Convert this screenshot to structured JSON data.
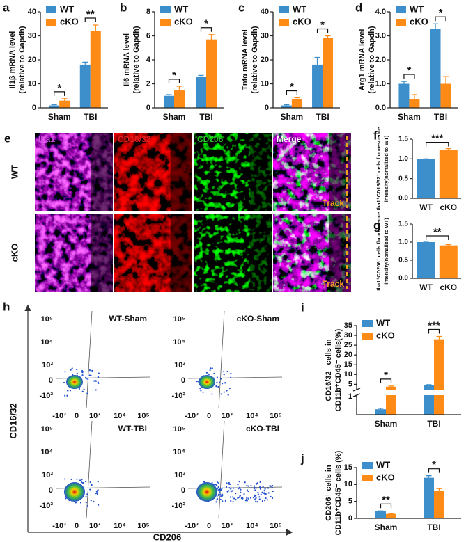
{
  "chart_data": [
    {
      "type": "bar",
      "panel": "a",
      "ylabel": [
        "Il1β mRNA level",
        "(relative to Gapdh)"
      ],
      "categories": [
        "Sham",
        "TBI"
      ],
      "series": [
        {
          "name": "WT",
          "color": "#3d8fcc",
          "values": [
            1,
            18
          ],
          "errors": [
            0.3,
            1
          ]
        },
        {
          "name": "cKO",
          "color": "#ff8b17",
          "values": [
            3,
            32
          ],
          "errors": [
            0.8,
            2.5
          ]
        }
      ],
      "ylim": [
        0,
        40
      ],
      "yticks": [
        0,
        10,
        20,
        30,
        40
      ],
      "significance": [
        "*",
        "**"
      ]
    },
    {
      "type": "bar",
      "panel": "b",
      "ylabel": [
        "Il6 mRNA level",
        "(relative to Gapdh)"
      ],
      "categories": [
        "Sham",
        "TBI"
      ],
      "series": [
        {
          "name": "WT",
          "color": "#3d8fcc",
          "values": [
            1.0,
            2.6
          ],
          "errors": [
            0.1,
            0.1
          ]
        },
        {
          "name": "cKO",
          "color": "#ff8b17",
          "values": [
            1.5,
            5.7
          ],
          "errors": [
            0.3,
            0.4
          ]
        }
      ],
      "ylim": [
        0,
        8
      ],
      "yticks": [
        0,
        2,
        4,
        6,
        8
      ],
      "significance": [
        "*",
        "*"
      ]
    },
    {
      "type": "bar",
      "panel": "c",
      "ylabel": [
        "Tnfα mRNA level",
        "(relative to Gapdh)"
      ],
      "categories": [
        "Sham",
        "TBI"
      ],
      "series": [
        {
          "name": "WT",
          "color": "#3d8fcc",
          "values": [
            1,
            18
          ],
          "errors": [
            0.3,
            3
          ]
        },
        {
          "name": "cKO",
          "color": "#ff8b17",
          "values": [
            3.5,
            29
          ],
          "errors": [
            0.7,
            1
          ]
        }
      ],
      "ylim": [
        0,
        40
      ],
      "yticks": [
        0,
        10,
        20,
        30,
        40
      ],
      "significance": [
        "*",
        "*"
      ]
    },
    {
      "type": "bar",
      "panel": "d",
      "ylabel": [
        "Arg1 mRNA level",
        "(relative to Gapdh)"
      ],
      "categories": [
        "Sham",
        "TBI"
      ],
      "series": [
        {
          "name": "WT",
          "color": "#3d8fcc",
          "values": [
            1.0,
            3.3
          ],
          "errors": [
            0.1,
            0.2
          ]
        },
        {
          "name": "cKO",
          "color": "#ff8b17",
          "values": [
            0.35,
            1.0
          ],
          "errors": [
            0.2,
            0.3
          ]
        }
      ],
      "ylim": [
        0,
        4
      ],
      "yticks": [
        {
          "value": 0,
          "label": "0.0"
        },
        {
          "value": 1,
          "label": "1.0"
        },
        {
          "value": 2,
          "label": "2.0"
        },
        {
          "value": 3,
          "label": "3.0"
        },
        {
          "value": 4,
          "label": "4.0"
        }
      ],
      "significance": [
        "*",
        "*"
      ]
    },
    {
      "type": "bar",
      "panel": "f",
      "ylabel": [
        "Iba1⁺CD16/32⁺ cells fluorescence",
        "intensity(nomalized to WT)"
      ],
      "categories": [
        "WT",
        "cKO"
      ],
      "values": [
        1.0,
        1.23
      ],
      "errors": [
        0,
        0.03
      ],
      "colors": [
        "#3d8fcc",
        "#ff8b17"
      ],
      "ylim": [
        0,
        1.5
      ],
      "yticks": [
        {
          "value": 0,
          "label": "0.0"
        },
        0.5,
        {
          "value": 1,
          "label": "1.0"
        },
        1.5
      ],
      "significance": "***"
    },
    {
      "type": "bar",
      "panel": "g",
      "ylabel": [
        "Iba1⁺CD206⁺ cells fluorescence",
        "intensity(nomalized to WT)"
      ],
      "categories": [
        "WT",
        "cKO"
      ],
      "values": [
        1.0,
        0.91
      ],
      "errors": [
        0,
        0.02
      ],
      "colors": [
        "#3d8fcc",
        "#ff8b17"
      ],
      "ylim": [
        0,
        1.5
      ],
      "yticks": [
        {
          "value": 0,
          "label": "0.0"
        },
        0.5,
        {
          "value": 1,
          "label": "1.0"
        },
        1.5
      ],
      "significance": "**"
    },
    {
      "type": "bar",
      "panel": "i",
      "ylabel": [
        "CD16/32⁺ cells in",
        "CD11b⁺CD45⁻ cells(%)"
      ],
      "categories": [
        "Sham",
        "TBI"
      ],
      "series": [
        {
          "name": "WT",
          "color": "#3d8fcc",
          "values": [
            0.3,
            4.5
          ],
          "errors": [
            0.05,
            0.3
          ]
        },
        {
          "name": "cKO",
          "color": "#ff8b17",
          "values": [
            3.8,
            28
          ],
          "errors": [
            0.3,
            1.5
          ]
        }
      ],
      "ylim": [
        0,
        35
      ],
      "axis_break": [
        1,
        3
      ],
      "yticks": [
        1,
        5,
        10,
        15,
        20,
        25,
        30,
        35
      ],
      "significance": [
        "*",
        "***"
      ]
    },
    {
      "type": "bar",
      "panel": "j",
      "ylabel": [
        "CD206⁺ cells in",
        "CD11b⁺CD45⁻ cells (%)"
      ],
      "categories": [
        "Sham",
        "TBI"
      ],
      "series": [
        {
          "name": "WT",
          "color": "#3d8fcc",
          "values": [
            2.1,
            12.0
          ],
          "errors": [
            0.1,
            0.6
          ]
        },
        {
          "name": "cKO",
          "color": "#ff8b17",
          "values": [
            1.3,
            8.2
          ],
          "errors": [
            0.1,
            0.6
          ]
        }
      ],
      "ylim": [
        0,
        15
      ],
      "yticks": [
        0,
        5,
        10,
        15
      ],
      "significance": [
        "**",
        "*"
      ]
    }
  ],
  "image_panel": {
    "panel": "e",
    "channels": [
      "Iba1",
      "CD16/32",
      "CD206",
      "Merge"
    ],
    "rows": [
      "WT",
      "cKO"
    ],
    "track_label": "Track"
  },
  "flow_panel": {
    "panel": "h",
    "plots": [
      "WT-Sham",
      "cKO-Sham",
      "WT-TBI",
      "cKO-TBI"
    ],
    "y_axis_label": "CD16/32",
    "x_axis_label": "CD206",
    "yticks": [
      "10⁵",
      "10⁴",
      "10³",
      "0",
      "-10³"
    ],
    "xticks": [
      "-10³",
      "0",
      "10³",
      "10⁴",
      "10⁵"
    ]
  }
}
